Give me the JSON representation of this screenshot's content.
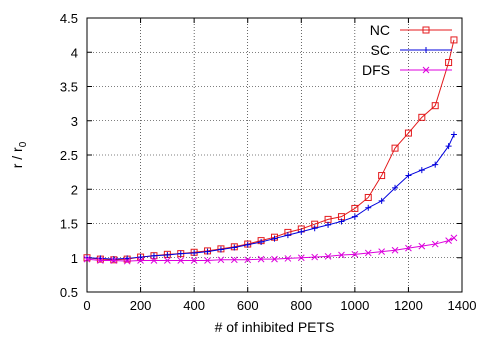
{
  "chart_data": {
    "type": "line",
    "xlabel": "# of inhibited PETS",
    "ylabel": {
      "main": "r / r",
      "sub": "0"
    },
    "xlim": [
      0,
      1400
    ],
    "ylim": [
      0.5,
      4.5
    ],
    "xticks": [
      0,
      200,
      400,
      600,
      800,
      1000,
      1200,
      1400
    ],
    "xtick_labels": [
      "0",
      "200",
      "400",
      "600",
      "800",
      "1000",
      "1200",
      "1400"
    ],
    "yticks": [
      0.5,
      1,
      1.5,
      2,
      2.5,
      3,
      3.5,
      4,
      4.5
    ],
    "ytick_labels": [
      "0.5",
      "1",
      "1.5",
      "2",
      "2.5",
      "3",
      "3.5",
      "4",
      "4.5"
    ],
    "grid": true,
    "legend_position": "top-right",
    "series": [
      {
        "name": "NC",
        "color": "#e41a1c",
        "marker": "square",
        "x": [
          0,
          50,
          100,
          150,
          200,
          250,
          300,
          350,
          400,
          450,
          500,
          550,
          600,
          650,
          700,
          750,
          800,
          850,
          900,
          950,
          1000,
          1050,
          1100,
          1150,
          1200,
          1250,
          1300,
          1350,
          1370
        ],
        "y": [
          1.0,
          0.98,
          0.97,
          0.98,
          1.01,
          1.03,
          1.05,
          1.06,
          1.08,
          1.1,
          1.13,
          1.16,
          1.2,
          1.25,
          1.3,
          1.37,
          1.42,
          1.49,
          1.56,
          1.6,
          1.72,
          1.88,
          2.2,
          2.6,
          2.82,
          3.05,
          3.22,
          3.85,
          4.18
        ]
      },
      {
        "name": "SC",
        "color": "#0000dd",
        "marker": "plus",
        "x": [
          0,
          50,
          100,
          150,
          200,
          250,
          300,
          350,
          400,
          450,
          500,
          550,
          600,
          650,
          700,
          750,
          800,
          850,
          900,
          950,
          1000,
          1050,
          1100,
          1150,
          1200,
          1250,
          1300,
          1350,
          1370
        ],
        "y": [
          1.0,
          0.99,
          0.98,
          0.99,
          1.01,
          1.03,
          1.04,
          1.06,
          1.07,
          1.09,
          1.12,
          1.15,
          1.19,
          1.23,
          1.28,
          1.33,
          1.38,
          1.43,
          1.48,
          1.53,
          1.6,
          1.73,
          1.83,
          2.02,
          2.2,
          2.28,
          2.36,
          2.63,
          2.8
        ]
      },
      {
        "name": "DFS",
        "color": "#dd00dd",
        "marker": "x",
        "x": [
          0,
          50,
          100,
          150,
          200,
          250,
          300,
          350,
          400,
          450,
          500,
          550,
          600,
          650,
          700,
          750,
          800,
          850,
          900,
          950,
          1000,
          1050,
          1100,
          1150,
          1200,
          1250,
          1300,
          1350,
          1370
        ],
        "y": [
          0.98,
          0.96,
          0.96,
          0.95,
          0.96,
          0.96,
          0.96,
          0.96,
          0.96,
          0.96,
          0.97,
          0.97,
          0.97,
          0.98,
          0.98,
          0.99,
          1.0,
          1.01,
          1.02,
          1.04,
          1.05,
          1.07,
          1.09,
          1.11,
          1.14,
          1.17,
          1.2,
          1.25,
          1.29
        ]
      }
    ]
  }
}
